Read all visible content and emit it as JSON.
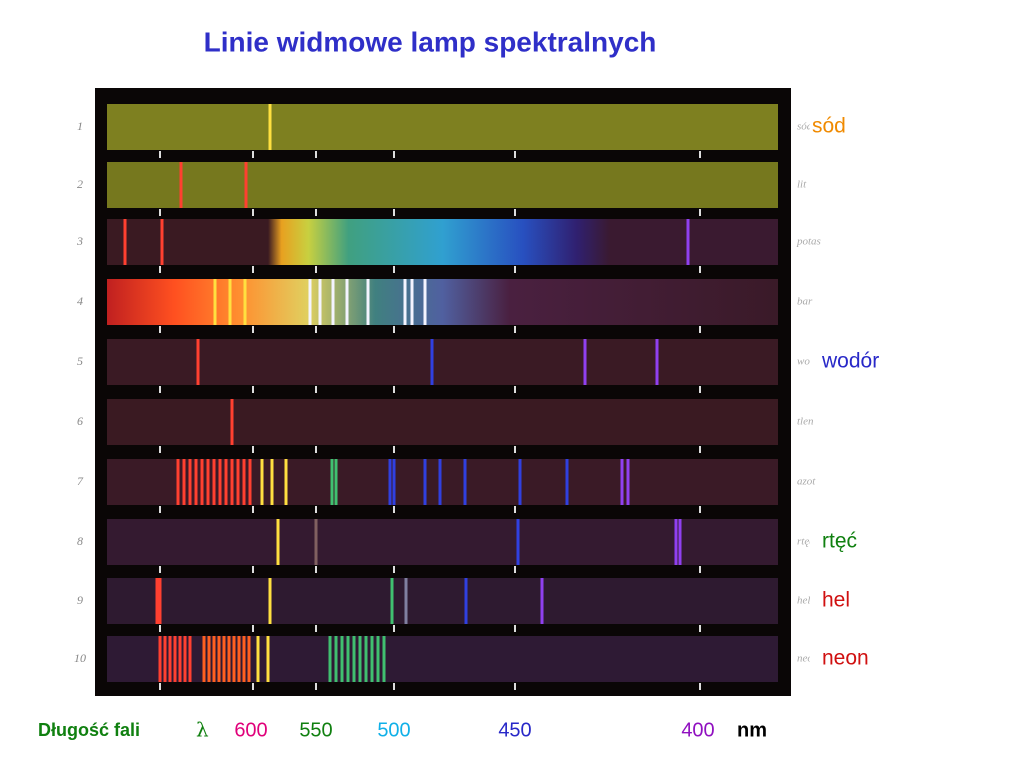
{
  "title": "Linie widmowe lamp spektralnych",
  "rows": [
    "1",
    "2",
    "3",
    "4",
    "5",
    "6",
    "7",
    "8",
    "9",
    "10"
  ],
  "strip_labels": [
    "sód",
    "lit",
    "potas",
    "bar",
    "wodór",
    "tlen",
    "azot",
    "rtęć",
    "hel",
    "neon"
  ],
  "labels": [
    {
      "row": 1,
      "text": "sód",
      "color": "#f08a00"
    },
    {
      "row": 5,
      "text": "wodór",
      "color": "#2828c8"
    },
    {
      "row": 8,
      "text": "rtęć",
      "color": "#108010"
    },
    {
      "row": 9,
      "text": "hel",
      "color": "#d01010"
    },
    {
      "row": 10,
      "text": "neon",
      "color": "#d01010"
    }
  ],
  "axis": {
    "label": "Długość fali",
    "symbol": "λ",
    "ticks": [
      {
        "value": 600,
        "color": "#e0007a"
      },
      {
        "value": 550,
        "color": "#108010"
      },
      {
        "value": 500,
        "color": "#10b0e8"
      },
      {
        "value": 450,
        "color": "#2828c8"
      },
      {
        "value": 400,
        "color": "#9010c0"
      }
    ],
    "unit": "nm"
  }
}
